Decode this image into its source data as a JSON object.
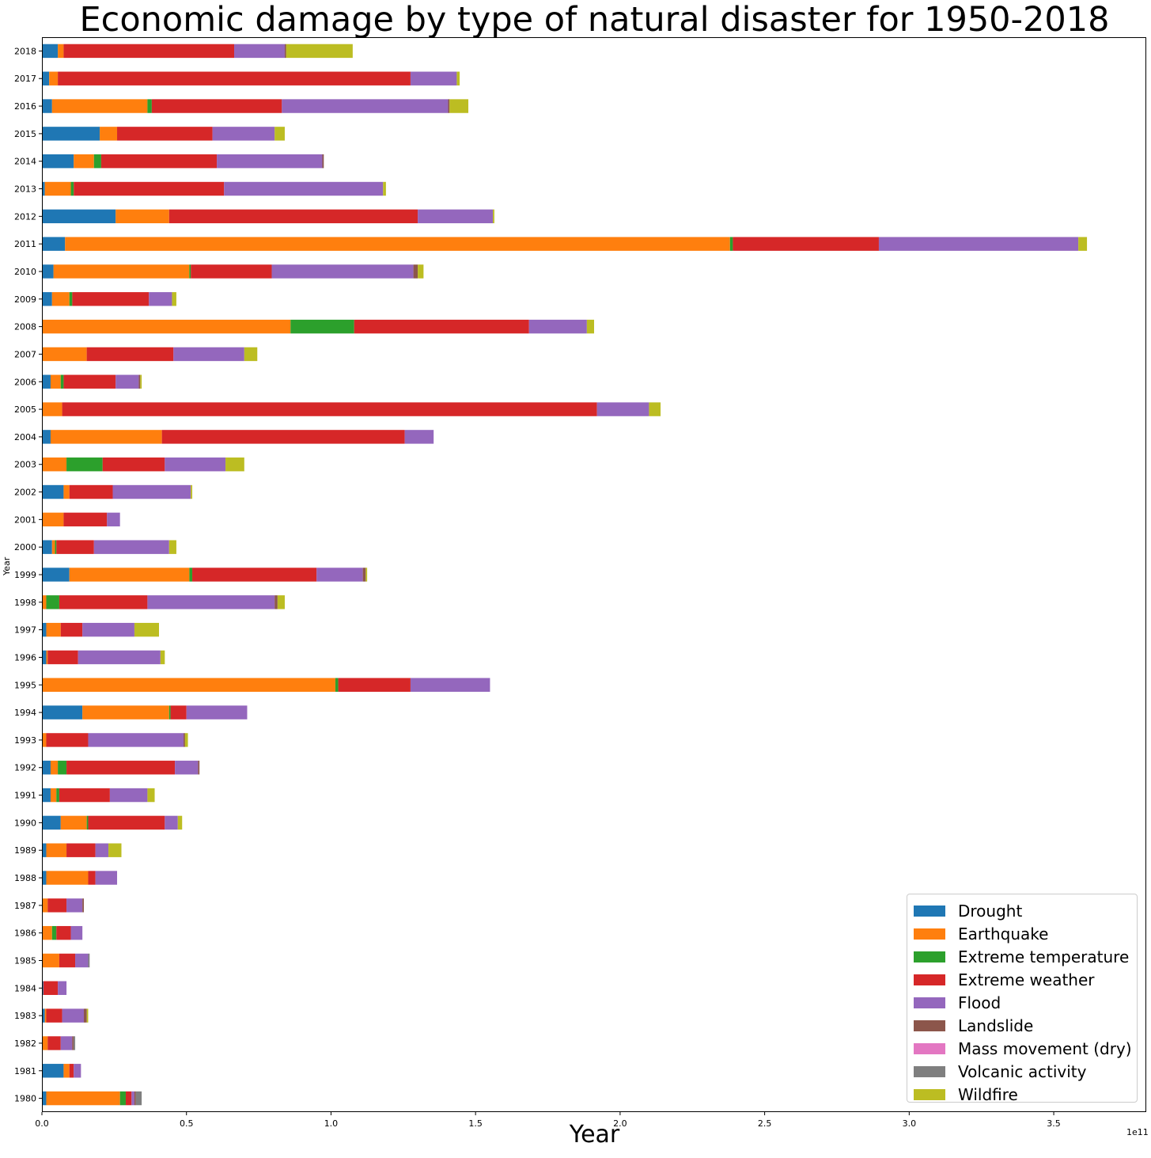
{
  "chart_data": {
    "type": "bar",
    "orientation": "horizontal",
    "stacked": true,
    "title": "Economic damage by type of natural disaster for 1950-2018",
    "xlabel": "Year",
    "ylabel": "Year",
    "x_offset_label": "1e11",
    "xlim": [
      0,
      382000000000.0
    ],
    "xticks": [
      0,
      50000000000.0,
      100000000000.0,
      150000000000.0,
      200000000000.0,
      250000000000.0,
      300000000000.0,
      350000000000.0
    ],
    "xtick_labels": [
      "0.0",
      "0.5",
      "1.0",
      "1.5",
      "2.0",
      "2.5",
      "3.0",
      "3.5"
    ],
    "grid": false,
    "legend_position": "lower-right",
    "categories": [
      "1980",
      "1981",
      "1982",
      "1983",
      "1984",
      "1985",
      "1986",
      "1987",
      "1988",
      "1989",
      "1990",
      "1991",
      "1992",
      "1993",
      "1994",
      "1995",
      "1996",
      "1997",
      "1998",
      "1999",
      "2000",
      "2001",
      "2002",
      "2003",
      "2004",
      "2005",
      "2006",
      "2007",
      "2008",
      "2009",
      "2010",
      "2011",
      "2012",
      "2013",
      "2014",
      "2015",
      "2016",
      "2017",
      "2018"
    ],
    "series": [
      {
        "name": "Drought",
        "color": "#1f77b4",
        "values": [
          1500000000.0,
          7500000000.0,
          0,
          1000000000.0,
          500000000.0,
          0,
          0,
          0,
          1500000000.0,
          1500000000.0,
          6500000000.0,
          3000000000.0,
          3000000000.0,
          0,
          14000000000.0,
          0,
          1500000000.0,
          1500000000.0,
          0,
          9500000000.0,
          3500000000.0,
          0,
          7500000000.0,
          0,
          3000000000.0,
          0,
          3000000000.0,
          0,
          0,
          3500000000.0,
          4000000000.0,
          8000000000.0,
          25500000000.0,
          1000000000.0,
          11000000000.0,
          20000000000.0,
          3500000000.0,
          2500000000.0,
          5500000000.0
        ]
      },
      {
        "name": "Earthquake",
        "color": "#ff7f0e",
        "values": [
          25500000000.0,
          2000000000.0,
          2000000000.0,
          500000000.0,
          0,
          6000000000.0,
          3500000000.0,
          2000000000.0,
          14500000000.0,
          7000000000.0,
          9000000000.0,
          2000000000.0,
          2500000000.0,
          1500000000.0,
          30000000000.0,
          101500000000.0,
          500000000.0,
          5000000000.0,
          1500000000.0,
          41500000000.0,
          1000000000.0,
          7500000000.0,
          2000000000.0,
          8500000000.0,
          38500000000.0,
          7000000000.0,
          3500000000.0,
          15500000000.0,
          86000000000.0,
          6000000000.0,
          47000000000.0,
          230000000000.0,
          18500000000.0,
          9000000000.0,
          7000000000.0,
          6000000000.0,
          33000000000.0,
          3000000000.0,
          2000000000.0
        ]
      },
      {
        "name": "Extreme temperature",
        "color": "#2ca02c",
        "values": [
          2000000000.0,
          0,
          0,
          0,
          0,
          0,
          1500000000.0,
          0,
          0,
          0,
          500000000.0,
          1000000000.0,
          3000000000.0,
          0,
          500000000.0,
          1000000000.0,
          0,
          0,
          4500000000.0,
          1000000000.0,
          500000000.0,
          0,
          0,
          12500000000.0,
          0,
          0,
          1000000000.0,
          0,
          22000000000.0,
          1000000000.0,
          500000000.0,
          1000000000.0,
          0,
          1000000000.0,
          2500000000.0,
          0,
          1500000000.0,
          0,
          0
        ]
      },
      {
        "name": "Extreme weather",
        "color": "#d62728",
        "values": [
          2000000000.0,
          1500000000.0,
          4500000000.0,
          5500000000.0,
          5000000000.0,
          5500000000.0,
          5000000000.0,
          6500000000.0,
          2500000000.0,
          10000000000.0,
          26500000000.0,
          17500000000.0,
          37500000000.0,
          14500000000.0,
          5500000000.0,
          25000000000.0,
          10500000000.0,
          7500000000.0,
          30500000000.0,
          43000000000.0,
          13000000000.0,
          15000000000.0,
          15000000000.0,
          21500000000.0,
          84000000000.0,
          185000000000.0,
          18000000000.0,
          30000000000.0,
          60500000000.0,
          26500000000.0,
          28000000000.0,
          50500000000.0,
          86000000000.0,
          52000000000.0,
          40000000000.0,
          33000000000.0,
          45000000000.0,
          122000000000.0,
          59000000000.0
        ]
      },
      {
        "name": "Flood",
        "color": "#9467bd",
        "values": [
          1000000000.0,
          2500000000.0,
          4000000000.0,
          7500000000.0,
          3000000000.0,
          4500000000.0,
          4000000000.0,
          5500000000.0,
          7500000000.0,
          4500000000.0,
          4500000000.0,
          13000000000.0,
          8000000000.0,
          33000000000.0,
          21000000000.0,
          27500000000.0,
          28500000000.0,
          18000000000.0,
          44000000000.0,
          16000000000.0,
          26000000000.0,
          4500000000.0,
          27000000000.0,
          21000000000.0,
          10000000000.0,
          18000000000.0,
          8000000000.0,
          24500000000.0,
          20000000000.0,
          8000000000.0,
          49000000000.0,
          69000000000.0,
          26000000000.0,
          55000000000.0,
          36500000000.0,
          21500000000.0,
          57500000000.0,
          16000000000.0,
          17500000000.0
        ]
      },
      {
        "name": "Landslide",
        "color": "#8c564b",
        "values": [
          500000000.0,
          0,
          500000000.0,
          1000000000.0,
          0,
          0,
          0,
          500000000.0,
          0,
          0,
          0,
          0,
          500000000.0,
          500000000.0,
          0,
          0,
          0,
          0,
          1000000000.0,
          1000000000.0,
          0,
          0,
          0,
          0,
          0,
          0,
          500000000.0,
          0,
          0,
          0,
          1500000000.0,
          0,
          0,
          0,
          500000000.0,
          0,
          500000000.0,
          0,
          500000000.0
        ]
      },
      {
        "name": "Mass movement (dry)",
        "color": "#e377c2",
        "values": [
          0,
          0,
          0,
          0,
          0,
          0,
          0,
          0,
          0,
          0,
          0,
          0,
          0,
          0,
          0,
          0,
          0,
          0,
          0,
          0,
          0,
          0,
          0,
          0,
          0,
          0,
          0,
          0,
          0,
          0,
          0,
          0,
          0,
          0,
          0,
          0,
          0,
          0,
          0
        ]
      },
      {
        "name": "Volcanic activity",
        "color": "#7f7f7f",
        "values": [
          2000000000.0,
          0,
          500000000.0,
          0,
          0,
          500000000.0,
          0,
          0,
          0,
          0,
          0,
          0,
          0,
          0,
          0,
          0,
          0,
          0,
          0,
          0,
          0,
          0,
          0,
          0,
          0,
          0,
          0,
          0,
          0,
          0,
          0,
          0,
          0,
          0,
          0,
          0,
          0,
          0,
          0
        ]
      },
      {
        "name": "Wildfire",
        "color": "#bcbd22",
        "values": [
          0,
          0,
          0,
          500000000.0,
          0,
          0,
          0,
          0,
          0,
          4500000000.0,
          1500000000.0,
          2500000000.0,
          0,
          1000000000.0,
          0,
          0,
          1500000000.0,
          8500000000.0,
          2500000000.0,
          500000000.0,
          2500000000.0,
          0,
          500000000.0,
          6500000000.0,
          0,
          4000000000.0,
          500000000.0,
          4500000000.0,
          2500000000.0,
          1500000000.0,
          2000000000.0,
          3000000000.0,
          500000000.0,
          1000000000.0,
          0,
          3500000000.0,
          6500000000.0,
          1000000000.0,
          23000000000.0
        ]
      }
    ]
  }
}
